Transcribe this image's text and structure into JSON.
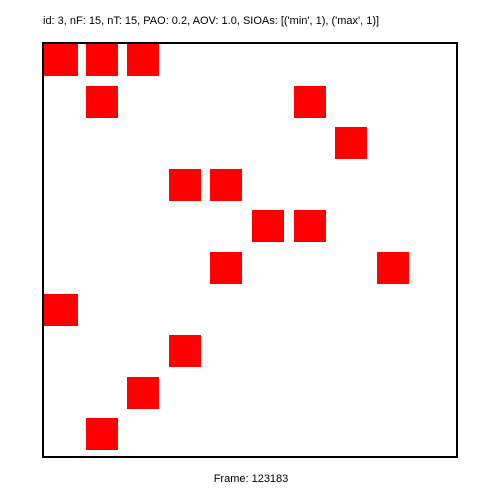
{
  "header": {
    "text": "id: 3, nF: 15, nT: 15, PAO: 0.2, AOV: 1.0, SIOAs: [('min', 1), ('max', 1)]"
  },
  "footer": {
    "frame_label": "Frame: 123183"
  },
  "grid": {
    "columns": 10,
    "rows": 10,
    "cell_color": "#ff0000",
    "background_color": "#ffffff",
    "border_color": "#000000",
    "filled_cells": [
      {
        "row": 0,
        "col": 0
      },
      {
        "row": 0,
        "col": 1
      },
      {
        "row": 0,
        "col": 2
      },
      {
        "row": 1,
        "col": 1
      },
      {
        "row": 1,
        "col": 6
      },
      {
        "row": 2,
        "col": 7
      },
      {
        "row": 3,
        "col": 3
      },
      {
        "row": 3,
        "col": 4
      },
      {
        "row": 4,
        "col": 5
      },
      {
        "row": 4,
        "col": 6
      },
      {
        "row": 5,
        "col": 4
      },
      {
        "row": 5,
        "col": 8
      },
      {
        "row": 6,
        "col": 0
      },
      {
        "row": 7,
        "col": 3
      },
      {
        "row": 8,
        "col": 2
      },
      {
        "row": 9,
        "col": 1
      }
    ]
  }
}
